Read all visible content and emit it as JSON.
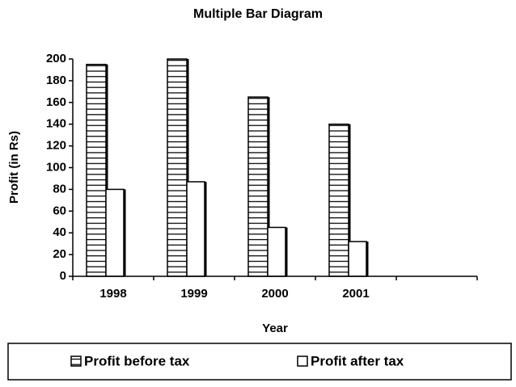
{
  "chart_data": {
    "type": "bar",
    "title": "Multiple Bar Diagram",
    "x_label": "Year",
    "y_label": "Profit (in Rs)",
    "categories": [
      "1998",
      "1999",
      "2000",
      "2001",
      null
    ],
    "series": [
      {
        "name": "Profit before tax",
        "color": "#ffffff",
        "hatch": "horizontal",
        "values": [
          195,
          200,
          165,
          140,
          null
        ]
      },
      {
        "name": "Profit after tax",
        "color": "#ffffff",
        "hatch": "none",
        "values": [
          80,
          87,
          45,
          32,
          null
        ]
      }
    ],
    "ylim": [
      0,
      200
    ],
    "yticks": [
      0,
      20,
      40,
      60,
      80,
      100,
      120,
      140,
      160,
      180,
      200
    ],
    "grid": false,
    "legend": "bottom"
  }
}
